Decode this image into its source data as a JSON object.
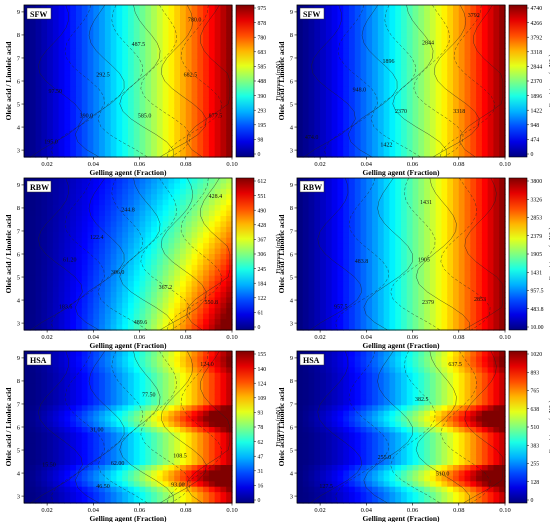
{
  "figure": {
    "x_axis_label": "Gelling agent (Fraction)",
    "y_axis_label": "Oleic acid / Linoleic acid",
    "x_ticks": [
      "0.02",
      "0.04",
      "0.06",
      "0.08",
      "0.10"
    ],
    "y_ticks": [
      "3",
      "4",
      "5",
      "6",
      "7",
      "8",
      "9"
    ]
  },
  "chart_data": [
    {
      "type": "heatmap",
      "panel_tag": "SFW",
      "colorbar_label": "Firmness (mN)",
      "colorbar_ticks": [
        "975",
        "878",
        "780",
        "683",
        "585",
        "488",
        "390",
        "293",
        "195",
        "98",
        "0"
      ],
      "xlim": [
        0.01,
        0.1
      ],
      "ylim": [
        2.7,
        9.3
      ],
      "contour_labels": [
        "780.0",
        "487.5",
        "682.5",
        "292.5",
        "97.50",
        "390.0",
        "585.0",
        "877.5",
        "195.0"
      ],
      "surface": {
        "kind": "gradient_x",
        "min": 0,
        "max": 975
      }
    },
    {
      "type": "heatmap",
      "panel_tag": "SFW",
      "colorbar_label": "Consistency (mN*s)",
      "colorbar_ticks": [
        "4740",
        "4266",
        "3792",
        "3318",
        "2844",
        "2370",
        "1896",
        "1422",
        "948",
        "474",
        "0"
      ],
      "xlim": [
        0.01,
        0.1
      ],
      "ylim": [
        2.7,
        9.3
      ],
      "contour_labels": [
        "3792",
        "2844",
        "1896",
        "948.0",
        "2370",
        "3318",
        "474.0",
        "1422"
      ],
      "surface": {
        "kind": "gradient_x",
        "min": 0,
        "max": 4740
      }
    },
    {
      "type": "heatmap",
      "panel_tag": "RBW",
      "colorbar_label": "Firmness (mN)",
      "colorbar_ticks": [
        "612",
        "551",
        "490",
        "428",
        "367",
        "306",
        "245",
        "184",
        "122",
        "61",
        "0"
      ],
      "xlim": [
        0.01,
        0.1
      ],
      "ylim": [
        2.7,
        9.3
      ],
      "contour_labels": [
        "428.4",
        "244.8",
        "122.4",
        "61.20",
        "306.0",
        "367.2",
        "183.6",
        "489.6",
        "550.8"
      ],
      "surface": {
        "kind": "gradient_x_hot_bottom",
        "min": 0,
        "max": 612
      }
    },
    {
      "type": "heatmap",
      "panel_tag": "RBW",
      "colorbar_label": "Consistency (mN*s)",
      "colorbar_ticks": [
        "3800",
        "3326",
        "2853",
        "2379",
        "1905",
        "1431",
        "957.5",
        "483.8",
        "10.00"
      ],
      "xlim": [
        0.01,
        0.1
      ],
      "ylim": [
        2.7,
        9.3
      ],
      "contour_labels": [
        "1431",
        "483.8",
        "1905",
        "957.5",
        "2379",
        "2853"
      ],
      "surface": {
        "kind": "gradient_x",
        "min": 10,
        "max": 3800
      }
    },
    {
      "type": "heatmap",
      "panel_tag": "HSA",
      "colorbar_label": "Firmness (mN)",
      "colorbar_ticks": [
        "155",
        "140",
        "124",
        "109",
        "93",
        "78",
        "62",
        "47",
        "31",
        "16",
        "0"
      ],
      "xlim": [
        0.01,
        0.1
      ],
      "ylim": [
        2.7,
        9.3
      ],
      "contour_labels": [
        "124.0",
        "77.50",
        "31.00",
        "108.5",
        "62.00",
        "15.50",
        "46.50",
        "93.00"
      ],
      "surface": {
        "kind": "gradient_x_fingers",
        "min": 0,
        "max": 155
      }
    },
    {
      "type": "heatmap",
      "panel_tag": "HSA",
      "colorbar_label": "Consistency (mN*s)",
      "colorbar_ticks": [
        "1020",
        "893",
        "765",
        "638",
        "510",
        "383",
        "255",
        "128",
        "0"
      ],
      "xlim": [
        0.01,
        0.1
      ],
      "ylim": [
        2.7,
        9.3
      ],
      "contour_labels": [
        "637.5",
        "382.5",
        "255.0",
        "510.0",
        "127.5"
      ],
      "surface": {
        "kind": "gradient_x_fingers",
        "min": 0,
        "max": 1020
      }
    }
  ]
}
